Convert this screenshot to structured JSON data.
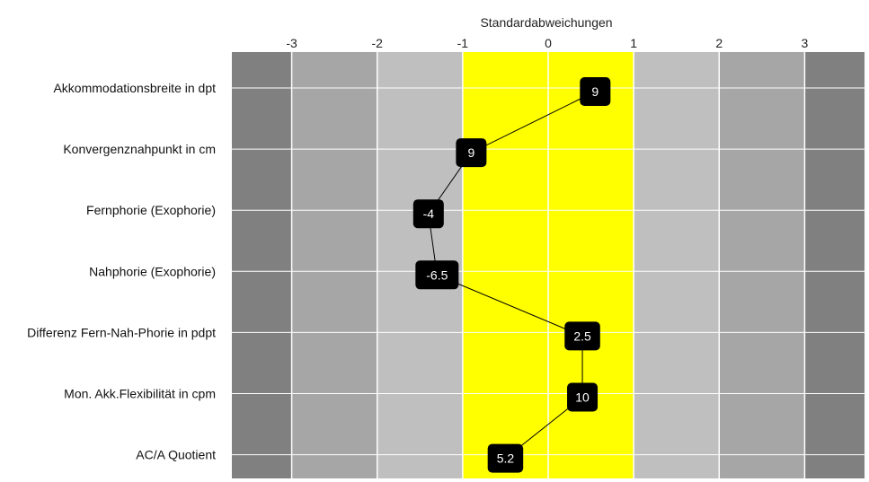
{
  "chart_data": {
    "type": "line",
    "title": "",
    "xlabel": "Standardabweichungen",
    "ylabel": "",
    "xlim": [
      -3.7,
      3.7
    ],
    "xticks": [
      -3,
      -2,
      -1,
      0,
      1,
      2,
      3
    ],
    "x_tick_labels": [
      "-3",
      "-2",
      "-1",
      "0",
      "1",
      "2",
      "3"
    ],
    "grid": true,
    "legend": "none",
    "bands": [
      {
        "from": -3.7,
        "to": -3,
        "color": "#808080"
      },
      {
        "from": -3,
        "to": -2,
        "color": "#a6a6a6"
      },
      {
        "from": -2,
        "to": -1,
        "color": "#bfbfbf"
      },
      {
        "from": -1,
        "to": 1,
        "color": "#ffff00"
      },
      {
        "from": 1,
        "to": 2,
        "color": "#bfbfbf"
      },
      {
        "from": 2,
        "to": 3,
        "color": "#a6a6a6"
      },
      {
        "from": 3,
        "to": 3.7,
        "color": "#808080"
      }
    ],
    "categories": [
      "Akkommodationsbreite in dpt",
      "Konvergenznahpunkt in cm",
      "Fernphorie (Exophorie)",
      "Nahphorie (Exophorie)",
      "Differenz Fern-Nah-Phorie in pdpt",
      "Mon. Akk.Flexibilität in cpm",
      "AC/A Quotient"
    ],
    "series": [
      {
        "x": [
          0.55,
          -0.9,
          -1.4,
          -1.3,
          0.4,
          0.4,
          -0.5
        ],
        "labels": [
          "9",
          "9",
          "-4",
          "-6.5",
          "2.5",
          "10",
          "5.2"
        ],
        "line_color": "#000000",
        "label_bg": "#000000",
        "label_color": "#ffffff"
      }
    ]
  }
}
